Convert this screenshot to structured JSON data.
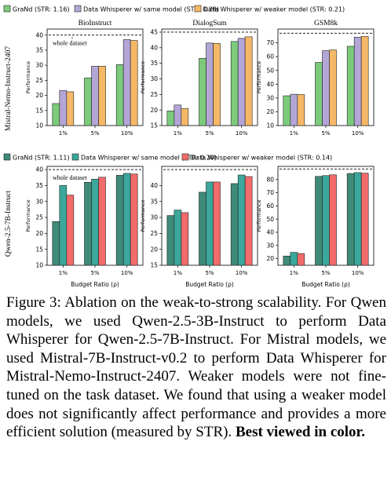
{
  "legends": [
    {
      "items": [
        {
          "label": "GraNd (STR: 1.16)",
          "color": "#7ccb7c"
        },
        {
          "label": "Data Whisperer w/ same model (STR: 0.28)",
          "color": "#b3a6d6"
        },
        {
          "label": "Data Whisperer w/ weaker model (STR: 0.21)",
          "color": "#f5b867"
        }
      ]
    },
    {
      "items": [
        {
          "label": "GraNd (STR: 1.11)",
          "color": "#3f8a7a"
        },
        {
          "label": "Data Whisperer w/ same model (STR: 0.20)",
          "color": "#3aa89b"
        },
        {
          "label": "Data Whisperer w/ weaker model (STR: 0.14)",
          "color": "#f26b6b"
        }
      ]
    }
  ],
  "row_labels": [
    "Mistral-Nemo-Instruct-2407",
    "Qwen-2.5-7B-Instruct"
  ],
  "ylabel": "Performance",
  "xlabel": "Budget Ratio (ρ)",
  "whole_dataset_label": "whole dataset",
  "chart_data": [
    {
      "type": "bar",
      "title": "BioInstruct",
      "categories": [
        "1%",
        "5%",
        "10%"
      ],
      "ylim": [
        10,
        42
      ],
      "yticks": [
        10,
        15,
        20,
        25,
        30,
        35,
        40
      ],
      "whole_dataset": 40,
      "series": [
        {
          "name": "GraNd (STR: 1.16)",
          "values": [
            17.3,
            25.8,
            30.2
          ]
        },
        {
          "name": "Data Whisperer w/ same model (STR: 0.28)",
          "values": [
            21.6,
            29.7,
            38.5
          ]
        },
        {
          "name": "Data Whisperer w/ weaker model (STR: 0.21)",
          "values": [
            21.2,
            29.7,
            38.2
          ]
        }
      ]
    },
    {
      "type": "bar",
      "title": "DialogSum",
      "categories": [
        "1%",
        "5%",
        "10%"
      ],
      "ylim": [
        15,
        46
      ],
      "yticks": [
        15,
        20,
        25,
        30,
        35,
        40,
        45
      ],
      "whole_dataset": 45,
      "series": [
        {
          "name": "GraNd (STR: 1.16)",
          "values": [
            19.7,
            36.6,
            42.0
          ]
        },
        {
          "name": "Data Whisperer w/ same model (STR: 0.28)",
          "values": [
            21.6,
            41.5,
            43.0
          ]
        },
        {
          "name": "Data Whisperer w/ weaker model (STR: 0.21)",
          "values": [
            20.5,
            41.4,
            43.5
          ]
        }
      ]
    },
    {
      "type": "bar",
      "title": "GSM8k",
      "categories": [
        "1%",
        "5%",
        "10%"
      ],
      "ylim": [
        10,
        80
      ],
      "yticks": [
        10,
        20,
        30,
        40,
        50,
        60,
        70
      ],
      "whole_dataset": 77,
      "series": [
        {
          "name": "GraNd (STR: 1.16)",
          "values": [
            31.6,
            55.8,
            67.5
          ]
        },
        {
          "name": "Data Whisperer w/ same model (STR: 0.28)",
          "values": [
            32.7,
            64.3,
            74.1
          ]
        },
        {
          "name": "Data Whisperer w/ weaker model (STR: 0.21)",
          "values": [
            32.5,
            64.8,
            74.6
          ]
        }
      ]
    },
    {
      "type": "bar",
      "title": "",
      "categories": [
        "1%",
        "5%",
        "10%"
      ],
      "ylim": [
        10,
        41
      ],
      "yticks": [
        10,
        15,
        20,
        25,
        30,
        35,
        40
      ],
      "whole_dataset": 40,
      "series": [
        {
          "name": "GraNd (STR: 1.11)",
          "values": [
            23.7,
            36.0,
            38.2
          ]
        },
        {
          "name": "Data Whisperer w/ same model (STR: 0.20)",
          "values": [
            35.0,
            37.0,
            38.8
          ]
        },
        {
          "name": "Data Whisperer w/ weaker model (STR: 0.14)",
          "values": [
            32.0,
            37.6,
            38.6
          ]
        }
      ]
    },
    {
      "type": "bar",
      "title": "",
      "categories": [
        "1%",
        "5%",
        "10%"
      ],
      "ylim": [
        15,
        46
      ],
      "yticks": [
        15,
        20,
        25,
        30,
        35,
        40
      ],
      "whole_dataset": 45,
      "series": [
        {
          "name": "GraNd (STR: 1.11)",
          "values": [
            30.6,
            37.9,
            40.6
          ]
        },
        {
          "name": "Data Whisperer w/ same model (STR: 0.20)",
          "values": [
            32.3,
            41.1,
            43.3
          ]
        },
        {
          "name": "Data Whisperer w/ weaker model (STR: 0.14)",
          "values": [
            31.5,
            41.1,
            42.8
          ]
        }
      ]
    },
    {
      "type": "bar",
      "title": "",
      "categories": [
        "1%",
        "5%",
        "10%"
      ],
      "ylim": [
        15,
        90
      ],
      "yticks": [
        20,
        30,
        40,
        50,
        60,
        70,
        80
      ],
      "whole_dataset": 88,
      "series": [
        {
          "name": "GraNd (STR: 1.11)",
          "values": [
            22.0,
            82.4,
            84.6
          ]
        },
        {
          "name": "Data Whisperer w/ same model (STR: 0.20)",
          "values": [
            24.8,
            83.0,
            85.3
          ]
        },
        {
          "name": "Data Whisperer w/ weaker model (STR: 0.14)",
          "values": [
            23.9,
            83.6,
            84.8
          ]
        }
      ]
    }
  ],
  "caption": {
    "text": "Figure 3: Ablation on the weak-to-strong scalability. For Qwen models, we used Qwen-2.5-3B-Instruct to perform Data Whisperer for Qwen-2.5-7B-Instruct. For Mistral models, we used Mistral-7B-Instruct-v0.2 to perform Data Whisperer for Mistral-Nemo-Instruct-2407. Weaker models were not fine-tuned on the task dataset. We found that using a weaker model does not significantly affect performance and provides a more efficient solution (measured by STR).",
    "bold": "Best viewed in color."
  }
}
